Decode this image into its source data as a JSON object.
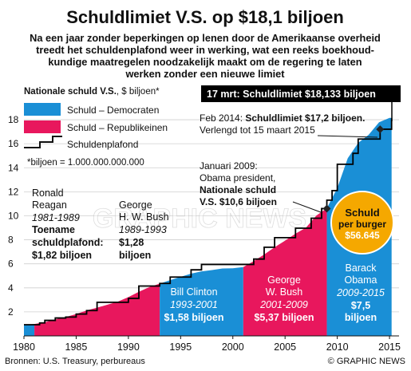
{
  "title": "Schuldlimiet V.S. op $18,1 biljoen",
  "intro": [
    "Na een jaar zonder beperkingen op lenen door de Amerikaanse overheid",
    "treedt het schuldenplafond weer in werking, wat een reeks boekhoud-",
    "kundige maatregelen noodzakelijk maakt om de regering te laten",
    "werken zonder een nieuwe limiet"
  ],
  "legend": {
    "heading": "Nationale schuld V.S.",
    "unit": ", $ biljoen*",
    "democrats": "Schuld – Democraten",
    "republicans": "Schuld – Republikeinen",
    "ceiling": "Schuldenplafond",
    "footnote": "*biljoen = 1.000.000.000.000"
  },
  "colors": {
    "democrat": "#1a8fd6",
    "republican": "#e8175d",
    "ceiling": "#000000",
    "callout": "#000000",
    "badge": "#f5a800"
  },
  "annotations": {
    "top_callout": "17 mrt: Schuldlimiet $18,133 biljoen",
    "feb2014": [
      "Feb 2014: ",
      "Schuldlimiet $17,2 biljoen.",
      "Verlengd tot 15 maart 2015"
    ],
    "jan2009": [
      "Januari 2009:",
      "Obama president,",
      "Nationale schuld",
      "V.S. $10,6 biljoen"
    ]
  },
  "badge": [
    "Schuld",
    "per burger",
    "$56.645"
  ],
  "presidents": [
    {
      "name": [
        "Ronald",
        "Reagan"
      ],
      "years": "1981-1989",
      "detail": [
        "Toename",
        "schuldplafond:",
        "$1,82 biljoen"
      ]
    },
    {
      "name": [
        "George",
        "H. W. Bush"
      ],
      "years": "1989-1993",
      "detail": [
        "$1,28",
        "biljoen"
      ]
    },
    {
      "name": [
        "Bill Clinton"
      ],
      "years": "1993-2001",
      "detail": [
        "$1,58 biljoen"
      ]
    },
    {
      "name": [
        "George",
        "W. Bush"
      ],
      "years": "2001-2009",
      "detail": [
        "$5,37 biljoen"
      ]
    },
    {
      "name": [
        "Barack",
        "Obama"
      ],
      "years": "2009-2015",
      "detail": [
        "$7,5",
        "biljoen"
      ]
    }
  ],
  "source": "Bronnen: U.S. Treasury, perbureaus",
  "credit": "© GRAPHIC NEWS",
  "watermark": "GRAPHIC NEWS",
  "chart_data": {
    "type": "area",
    "xlim": [
      1980,
      2015.3
    ],
    "ylim": [
      0,
      19
    ],
    "x_ticks": [
      1980,
      1985,
      1990,
      1995,
      2000,
      2005,
      2010,
      2015
    ],
    "y_ticks": [
      2,
      4,
      6,
      8,
      10,
      12,
      14,
      16,
      18
    ],
    "series": [
      {
        "name": "Schuld – Democraten",
        "x": [
          1980,
          1981
        ],
        "y": [
          0.91,
          0.99
        ]
      },
      {
        "name": "Schuld – Republikeinen",
        "x": [
          1981,
          1982,
          1983,
          1984,
          1985,
          1986,
          1987,
          1988,
          1989,
          1990,
          1991,
          1992,
          1993
        ],
        "y": [
          0.99,
          1.14,
          1.37,
          1.57,
          1.82,
          2.12,
          2.35,
          2.6,
          2.86,
          3.23,
          3.67,
          4.06,
          4.35
        ]
      },
      {
        "name": "Schuld – Democraten",
        "x": [
          1993,
          1994,
          1995,
          1996,
          1997,
          1998,
          1999,
          2000,
          2001
        ],
        "y": [
          4.35,
          4.64,
          4.92,
          5.18,
          5.37,
          5.48,
          5.61,
          5.63,
          5.73
        ]
      },
      {
        "name": "Schuld – Republikeinen",
        "x": [
          2001,
          2002,
          2003,
          2004,
          2005,
          2006,
          2007,
          2008,
          2009
        ],
        "y": [
          5.73,
          6.23,
          6.78,
          7.38,
          7.93,
          8.51,
          9.01,
          10.02,
          10.63
        ]
      },
      {
        "name": "Schuld – Democraten",
        "x": [
          2009,
          2010,
          2011,
          2012,
          2013,
          2014,
          2015,
          2015.2
        ],
        "y": [
          10.63,
          12.31,
          14.79,
          16.07,
          16.74,
          17.79,
          18.15,
          18.15
        ]
      },
      {
        "name": "Schuldenplafond",
        "x": [
          1980,
          1981.5,
          1982,
          1983,
          1984,
          1985,
          1986,
          1987,
          1988,
          1990,
          1991,
          1993,
          1994,
          1996,
          1997,
          2002,
          2003,
          2004,
          2006,
          2007.5,
          2008.5,
          2009,
          2009.5,
          2010,
          2011.5,
          2012,
          2014.1,
          2015.2
        ],
        "y": [
          0.93,
          1.08,
          1.29,
          1.49,
          1.57,
          1.82,
          2.11,
          2.8,
          2.8,
          3.12,
          4.15,
          4.37,
          4.9,
          5.5,
          5.95,
          6.4,
          7.38,
          8.18,
          8.97,
          9.8,
          10.6,
          11.3,
          12.1,
          14.29,
          15.2,
          16.39,
          17.21,
          18.13
        ]
      }
    ],
    "markers": [
      {
        "x": 2009,
        "y": 10.6
      },
      {
        "x": 2014.1,
        "y": 17.2
      }
    ]
  }
}
